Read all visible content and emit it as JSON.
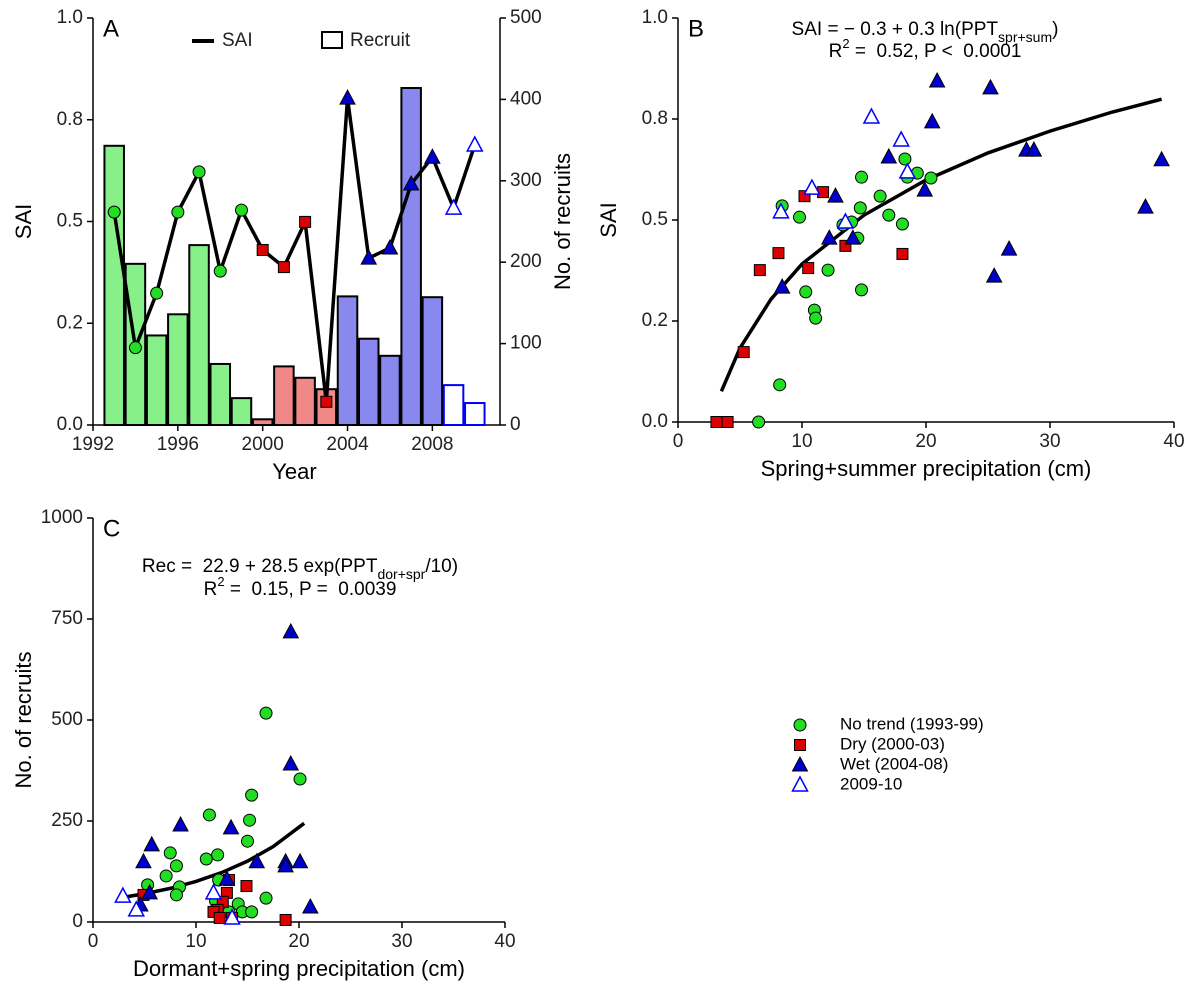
{
  "chart_data": [
    {
      "type": "combo",
      "panel_label": "A",
      "x_label": "Year",
      "y_label": "SAI",
      "y2_label": "No. of recruits",
      "xlim": [
        1992,
        2011
      ],
      "xticks": [
        1992,
        1996,
        2000,
        2004,
        2008
      ],
      "ylim": [
        0,
        1
      ],
      "yticks": [
        {
          "value": 0,
          "label": "0.0"
        },
        {
          "value": 0.25,
          "label": "0.2"
        },
        0.5,
        {
          "value": 0.75,
          "label": "0.8"
        },
        {
          "value": 1,
          "label": "1.0"
        }
      ],
      "y2lim": [
        0,
        500
      ],
      "y2ticks": [
        0,
        100,
        200,
        300,
        400,
        500
      ],
      "x": [
        1993,
        1994,
        1995,
        1996,
        1997,
        1998,
        1999,
        2000,
        2001,
        2002,
        2003,
        2004,
        2005,
        2006,
        2007,
        2008,
        2009,
        2010
      ],
      "series": [
        {
          "name": "Recruit",
          "kind": "bar",
          "axis": "y2",
          "values": [
            343,
            198,
            110,
            136,
            221,
            75,
            33,
            7,
            72,
            58,
            44,
            158,
            106,
            85,
            414,
            157,
            49,
            27
          ],
          "fills": [
            "#88f088",
            "#88f088",
            "#88f088",
            "#88f088",
            "#88f088",
            "#88f088",
            "#88f088",
            "#f08888",
            "#f08888",
            "#f08888",
            "#f08888",
            "#8888ee",
            "#8888ee",
            "#8888ee",
            "#8888ee",
            "#8888ee",
            "#ffffff",
            "#ffffff"
          ],
          "edge_colors": [
            "#000000",
            "#000000",
            "#000000",
            "#000000",
            "#000000",
            "#000000",
            "#000000",
            "#000000",
            "#000000",
            "#000000",
            "#000000",
            "#000000",
            "#000000",
            "#000000",
            "#000000",
            "#000000",
            "#0000ff",
            "#0000ff"
          ]
        },
        {
          "name": "SAI",
          "kind": "line",
          "color": "#000000",
          "values": [
            0.523,
            0.19,
            0.324,
            0.523,
            0.622,
            0.378,
            0.528,
            0.43,
            0.388,
            0.499,
            0.057,
            0.803,
            0.41,
            0.435,
            0.592,
            0.658,
            0.533,
            0.688
          ],
          "markers": [
            "circle",
            "circle",
            "circle",
            "circle",
            "circle",
            "circle",
            "circle",
            "square",
            "square",
            "square",
            "square",
            "triangle",
            "triangle",
            "triangle",
            "triangle",
            "triangle",
            "triangle-open",
            "triangle-open"
          ],
          "marker_colors": [
            "#22dd22",
            "#22dd22",
            "#22dd22",
            "#22dd22",
            "#22dd22",
            "#22dd22",
            "#22dd22",
            "#dd0000",
            "#dd0000",
            "#dd0000",
            "#dd0000",
            "#0000cc",
            "#0000cc",
            "#0000cc",
            "#0000cc",
            "#0000cc",
            "#0000ff",
            "#0000ff"
          ]
        }
      ]
    },
    {
      "type": "scatter",
      "panel_label": "B",
      "x_label": "Spring+summer precipitation (cm)",
      "y_label": "SAI",
      "xlim": [
        0,
        40
      ],
      "xticks": [
        0,
        10,
        20,
        30,
        40
      ],
      "ylim": [
        0,
        1
      ],
      "yticks": [
        {
          "value": 0,
          "label": "0.0"
        },
        {
          "value": 0.25,
          "label": "0.2"
        },
        0.5,
        {
          "value": 0.75,
          "label": "0.8"
        },
        {
          "value": 1,
          "label": "1.0"
        }
      ],
      "equation": {
        "main": "SAI = − 0.3 + 0.3 ln(PPT",
        "subscript": "spr+sum",
        "close": ")",
        "r": "R",
        "r_exp": "2",
        "stats": " =  0.52, P <  0.0001"
      },
      "fit": {
        "x": [
          3.5,
          5,
          7.5,
          10,
          15,
          20,
          25,
          30,
          35,
          39
        ],
        "y": [
          0.076,
          0.183,
          0.304,
          0.391,
          0.512,
          0.599,
          0.666,
          0.72,
          0.767,
          0.799
        ]
      },
      "series": [
        {
          "name": "No trend (1993-99)",
          "color": "#22dd22",
          "marker": "circle",
          "x": [
            8.4,
            9.8,
            8.2,
            6.5,
            10.3,
            11.0,
            11.1,
            12.1,
            13.3,
            14.0,
            14.5,
            14.7,
            14.8,
            14.8,
            16.3,
            17.0,
            18.1,
            18.3,
            18.5,
            19.3,
            20.4
          ],
          "values": [
            0.535,
            0.507,
            0.092,
            0,
            0.322,
            0.277,
            0.257,
            0.376,
            0.488,
            0.495,
            0.455,
            0.53,
            0.327,
            0.606,
            0.559,
            0.512,
            0.49,
            0.651,
            0.606,
            0.616,
            0.604
          ]
        },
        {
          "name": "Dry (2000-03)",
          "color": "#dd0000",
          "marker": "square",
          "x": [
            3.1,
            4.0,
            5.3,
            6.6,
            8.1,
            10.2,
            10.5,
            11.7,
            13.5,
            18.1
          ],
          "values": [
            0,
            0,
            0.173,
            0.376,
            0.418,
            0.559,
            0.381,
            0.569,
            0.436,
            0.416
          ]
        },
        {
          "name": "Wet (2004-08)",
          "color": "#0000cc",
          "marker": "triangle",
          "x": [
            8.4,
            12.7,
            12.2,
            14.1,
            17.0,
            19.9,
            20.5,
            20.9,
            25.2,
            25.5,
            26.7,
            28.1,
            28.7,
            37.7,
            39.0
          ],
          "values": [
            0.334,
            0.559,
            0.455,
            0.455,
            0.656,
            0.574,
            0.743,
            0.844,
            0.827,
            0.361,
            0.428,
            0.673,
            0.673,
            0.532,
            0.649
          ]
        },
        {
          "name": "2009-10",
          "color": "#0000ff",
          "marker": "triangle-open",
          "x": [
            8.3,
            10.8,
            13.5,
            15.6,
            18.0,
            18.5
          ],
          "values": [
            0.52,
            0.579,
            0.495,
            0.755,
            0.698,
            0.619
          ]
        }
      ]
    },
    {
      "type": "scatter",
      "panel_label": "C",
      "x_label": "Dormant+spring precipitation (cm)",
      "y_label": "No. of recruits",
      "xlim": [
        0,
        40
      ],
      "xticks": [
        0,
        10,
        20,
        30,
        40
      ],
      "ylim": [
        0,
        1000
      ],
      "yticks": [
        0,
        250,
        500,
        750,
        1000
      ],
      "equation": {
        "main": "Rec =  22.9 + 28.5 exp(PPT",
        "subscript": "dor+spr",
        "close": "/10)",
        "r": "R",
        "r_exp": "2",
        "stats": " =  0.15, P =  0.0039"
      },
      "fit": {
        "x": [
          3,
          5,
          7.5,
          10,
          12.5,
          15,
          17.5,
          20.5
        ],
        "y": [
          61.4,
          69.9,
          83.2,
          100.4,
          122.4,
          150.6,
          186.9,
          244.3
        ]
      },
      "series": [
        {
          "color": "#22dd22",
          "marker": "circle",
          "x": [
            16.8,
            20.1,
            15.4,
            11.3,
            15.2,
            15.0,
            12.1,
            7.5,
            8.1,
            7.1,
            8.4,
            8.1,
            5.3,
            11.0,
            12.2,
            11.9,
            14.1,
            14.5,
            15.4,
            16.8,
            13.2
          ],
          "values": [
            517,
            354,
            314,
            265,
            252,
            200,
            166,
            171,
            139,
            114,
            87,
            67,
            92,
            156,
            104,
            52,
            45,
            25,
            25,
            59,
            25
          ]
        },
        {
          "color": "#dd0000",
          "marker": "square",
          "x": [
            13.0,
            13.2,
            14.9,
            12.6,
            12.1,
            11.7,
            12.3,
            13.5,
            18.7,
            4.9
          ],
          "values": [
            72,
            104,
            89,
            50,
            30,
            25,
            10,
            10,
            5,
            67
          ]
        },
        {
          "color": "#0000cc",
          "marker": "triangle",
          "x": [
            19.2,
            19.2,
            5.7,
            8.5,
            13.4,
            4.9,
            15.9,
            18.7,
            20.1,
            18.7,
            13.0,
            5.5,
            4.6,
            21.1
          ],
          "values": [
            718,
            391,
            191,
            240,
            233,
            149,
            149,
            149,
            149,
            139,
            106,
            72,
            42,
            37
          ]
        },
        {
          "color": "#0000ff",
          "marker": "triangle-open",
          "x": [
            2.9,
            4.2,
            11.7,
            13.5
          ],
          "values": [
            64,
            30,
            72,
            10
          ]
        }
      ]
    }
  ]
}
